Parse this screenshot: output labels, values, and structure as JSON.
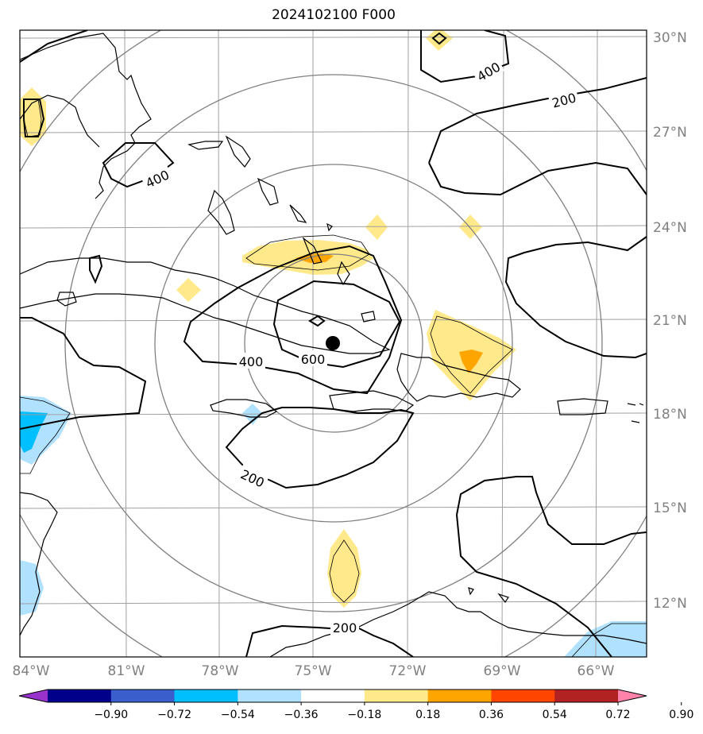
{
  "title": "2024102100 F000",
  "lat_labels": [
    "30°N",
    "27°N",
    "24°N",
    "21°N",
    "18°N",
    "15°N",
    "12°N"
  ],
  "lon_labels": [
    "84°W",
    "81°W",
    "78°W",
    "75°W",
    "72°W",
    "69°W",
    "66°W"
  ],
  "contour_labels": [
    "400",
    "200",
    "400",
    "400",
    "600",
    "200",
    "200"
  ],
  "colorbar": {
    "ticks": [
      "−0.90",
      "−0.72",
      "−0.54",
      "−0.36",
      "−0.18",
      "0.18",
      "0.36",
      "0.54",
      "0.72",
      "0.90"
    ],
    "colors": [
      "#9932cc",
      "#00008b",
      "#3a5fcd",
      "#00bfff",
      "#b0e2ff",
      "#ffffff",
      "#ffe98a",
      "#ffa500",
      "#ff4500",
      "#b22222",
      "#ff82ab"
    ]
  },
  "colors": {
    "grid": "#a0a0a0",
    "range_ring": "#808080",
    "coast": "#000000",
    "contour": "#000000"
  }
}
